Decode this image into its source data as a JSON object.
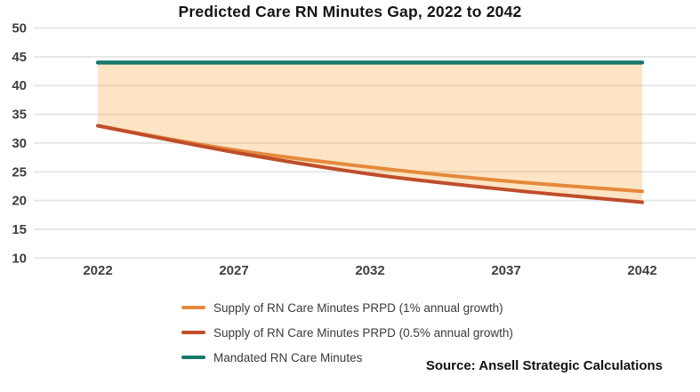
{
  "title": "Predicted Care RN Minutes Gap, 2022 to 2042",
  "source_label": "Source: Ansell Strategic Calculations",
  "chart_data": {
    "type": "line",
    "x": [
      2022,
      2027,
      2032,
      2037,
      2042
    ],
    "series": [
      {
        "name": "Supply of RN Care Minutes PRPD (1% annual growth)",
        "color": "#E5893B",
        "values": [
          33,
          28.8,
          25.8,
          23.4,
          21.6
        ]
      },
      {
        "name": "Supply of RN Care Minutes PRPD (0.5% annual growth)",
        "color": "#BF4D2B",
        "values": [
          33,
          28.4,
          24.6,
          21.9,
          19.7
        ]
      },
      {
        "name": "Mandated RN Care Minutes",
        "color": "#17786B",
        "values": [
          44,
          44,
          44,
          44,
          44
        ]
      }
    ],
    "gap_fill": {
      "between": [
        "Mandated RN Care Minutes",
        "Supply of RN Care Minutes PRPD (0.5% annual growth)"
      ],
      "color": "rgba(244,158,44,0.28)"
    },
    "ylim": [
      10,
      50
    ],
    "ytick_step": 5,
    "yticks": [
      10,
      15,
      20,
      25,
      30,
      35,
      40,
      45,
      50
    ],
    "grid": true,
    "grid_color": "#E7E7E7",
    "tick_label_color": "#3F3F3F",
    "legend_position": "bottom-left"
  }
}
